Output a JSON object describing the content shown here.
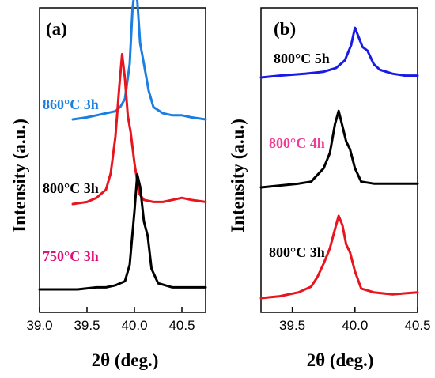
{
  "chart_data": [
    {
      "type": "line",
      "panel_label": "(a)",
      "xlabel": "2θ (deg.)",
      "ylabel": "Intensity (a.u.)",
      "xlim": [
        39.0,
        40.75
      ],
      "xticks": [
        "39.0",
        "39.5",
        "40.0",
        "40.5"
      ],
      "xtick_values": [
        39.0,
        39.5,
        40.0,
        40.5
      ],
      "series": [
        {
          "label": "860°C 3h",
          "color": "#1a7fe0",
          "label_color": "#1a7fe0",
          "points": [
            [
              39.35,
              0.18
            ],
            [
              39.5,
              0.19
            ],
            [
              39.6,
              0.2
            ],
            [
              39.7,
              0.21
            ],
            [
              39.8,
              0.22
            ],
            [
              39.85,
              0.24
            ],
            [
              39.9,
              0.28
            ],
            [
              39.95,
              0.45
            ],
            [
              39.98,
              0.72
            ],
            [
              40.0,
              0.8
            ],
            [
              40.03,
              0.76
            ],
            [
              40.06,
              0.55
            ],
            [
              40.1,
              0.45
            ],
            [
              40.15,
              0.32
            ],
            [
              40.2,
              0.24
            ],
            [
              40.3,
              0.21
            ],
            [
              40.4,
              0.2
            ],
            [
              40.5,
              0.2
            ],
            [
              40.6,
              0.19
            ],
            [
              40.75,
              0.18
            ]
          ]
        },
        {
          "label": "800°C 3h",
          "color": "#e8141e",
          "label_color": "#000000",
          "points": [
            [
              39.35,
              0.05
            ],
            [
              39.5,
              0.06
            ],
            [
              39.6,
              0.08
            ],
            [
              39.7,
              0.12
            ],
            [
              39.75,
              0.2
            ],
            [
              39.8,
              0.38
            ],
            [
              39.84,
              0.62
            ],
            [
              39.87,
              0.78
            ],
            [
              39.9,
              0.66
            ],
            [
              39.93,
              0.48
            ],
            [
              39.96,
              0.4
            ],
            [
              40.0,
              0.25
            ],
            [
              40.05,
              0.1
            ],
            [
              40.1,
              0.07
            ],
            [
              40.2,
              0.06
            ],
            [
              40.3,
              0.06
            ],
            [
              40.4,
              0.07
            ],
            [
              40.5,
              0.08
            ],
            [
              40.6,
              0.07
            ],
            [
              40.75,
              0.06
            ]
          ]
        },
        {
          "label": "750°C 3h",
          "color": "#000000",
          "label_color": "#e0107a",
          "points": [
            [
              39.0,
              0.02
            ],
            [
              39.2,
              0.02
            ],
            [
              39.4,
              0.02
            ],
            [
              39.6,
              0.03
            ],
            [
              39.7,
              0.03
            ],
            [
              39.8,
              0.04
            ],
            [
              39.9,
              0.06
            ],
            [
              39.95,
              0.14
            ],
            [
              40.0,
              0.4
            ],
            [
              40.03,
              0.58
            ],
            [
              40.06,
              0.52
            ],
            [
              40.1,
              0.35
            ],
            [
              40.14,
              0.28
            ],
            [
              40.18,
              0.12
            ],
            [
              40.25,
              0.05
            ],
            [
              40.4,
              0.03
            ],
            [
              40.6,
              0.03
            ],
            [
              40.75,
              0.03
            ]
          ]
        }
      ]
    },
    {
      "type": "line",
      "panel_label": "(b)",
      "xlabel": "2θ (deg.)",
      "ylabel": "Intensity (a.u.)",
      "xlim": [
        39.25,
        40.5
      ],
      "xticks": [
        "39.5",
        "40.0",
        "40.5"
      ],
      "xtick_values": [
        39.5,
        40.0,
        40.5
      ],
      "series": [
        {
          "label": "800°C 5h",
          "color": "#1a1ae8",
          "label_color": "#000000",
          "points": [
            [
              39.25,
              0.81
            ],
            [
              39.4,
              0.82
            ],
            [
              39.6,
              0.83
            ],
            [
              39.75,
              0.84
            ],
            [
              39.85,
              0.86
            ],
            [
              39.92,
              0.9
            ],
            [
              39.97,
              0.98
            ],
            [
              40.0,
              1.07
            ],
            [
              40.03,
              1.02
            ],
            [
              40.06,
              0.97
            ],
            [
              40.1,
              0.95
            ],
            [
              40.15,
              0.88
            ],
            [
              40.2,
              0.85
            ],
            [
              40.3,
              0.83
            ],
            [
              40.4,
              0.82
            ],
            [
              40.5,
              0.82
            ]
          ]
        },
        {
          "label": "800°C 4h",
          "color": "#000000",
          "label_color": "#f03c96",
          "points": [
            [
              39.25,
              0.42
            ],
            [
              39.4,
              0.43
            ],
            [
              39.55,
              0.44
            ],
            [
              39.65,
              0.45
            ],
            [
              39.75,
              0.52
            ],
            [
              39.8,
              0.6
            ],
            [
              39.84,
              0.75
            ],
            [
              39.87,
              0.82
            ],
            [
              39.9,
              0.74
            ],
            [
              39.93,
              0.66
            ],
            [
              39.96,
              0.62
            ],
            [
              40.0,
              0.52
            ],
            [
              40.05,
              0.45
            ],
            [
              40.15,
              0.44
            ],
            [
              40.3,
              0.44
            ],
            [
              40.5,
              0.44
            ]
          ]
        },
        {
          "label": "800°C 3h",
          "color": "#e8141e",
          "label_color": "#000000",
          "points": [
            [
              39.25,
              0.02
            ],
            [
              39.4,
              0.03
            ],
            [
              39.55,
              0.05
            ],
            [
              39.65,
              0.08
            ],
            [
              39.7,
              0.13
            ],
            [
              39.75,
              0.2
            ],
            [
              39.8,
              0.28
            ],
            [
              39.84,
              0.38
            ],
            [
              39.87,
              0.45
            ],
            [
              39.9,
              0.4
            ],
            [
              39.93,
              0.3
            ],
            [
              39.96,
              0.26
            ],
            [
              40.0,
              0.16
            ],
            [
              40.05,
              0.07
            ],
            [
              40.15,
              0.05
            ],
            [
              40.3,
              0.04
            ],
            [
              40.5,
              0.05
            ]
          ]
        }
      ]
    }
  ]
}
